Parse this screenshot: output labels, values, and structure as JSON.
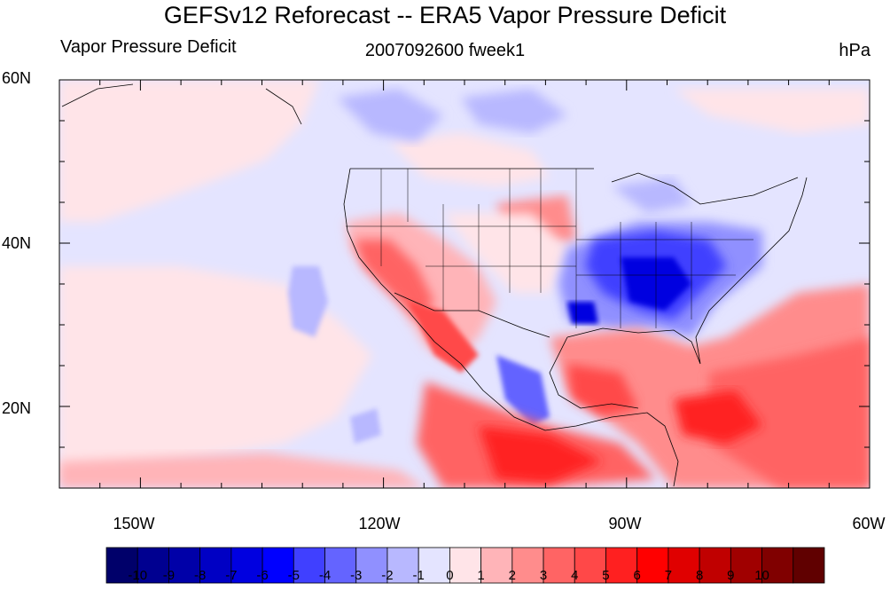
{
  "title": "GEFSv12 Reforecast -- ERA5 Vapor Pressure Deficit",
  "subtitle_left": "Vapor Pressure Deficit",
  "subtitle_center": "2007092600 fweek1",
  "subtitle_right": "hPa",
  "map": {
    "lat_range": [
      10,
      60
    ],
    "lon_range": [
      -160,
      -60
    ],
    "lat_ticks": [
      {
        "value": 60,
        "label": "60N"
      },
      {
        "value": 40,
        "label": "40N"
      },
      {
        "value": 20,
        "label": "20N"
      }
    ],
    "lon_ticks": [
      {
        "value": -150,
        "label": "150W"
      },
      {
        "value": -120,
        "label": "120W"
      },
      {
        "value": -90,
        "label": "90W"
      },
      {
        "value": -60,
        "label": "60W"
      }
    ]
  },
  "colorbar": {
    "colors": [
      "#00006a",
      "#000090",
      "#0000a8",
      "#0000c4",
      "#0000e0",
      "#0000ff",
      "#4040ff",
      "#6464ff",
      "#9090ff",
      "#b8b8ff",
      "#e4e4ff",
      "#ffe4e8",
      "#ffb4b8",
      "#ff8c8c",
      "#ff6464",
      "#ff4848",
      "#ff2020",
      "#ff0000",
      "#e00000",
      "#c00000",
      "#a00000",
      "#800000",
      "#600000"
    ],
    "labels": [
      "-10",
      "-9",
      "-8",
      "-7",
      "-6",
      "-5",
      "-4",
      "-3",
      "-2",
      "-1",
      "0",
      "1",
      "2",
      "3",
      "4",
      "5",
      "6",
      "7",
      "8",
      "9",
      "10"
    ]
  }
}
